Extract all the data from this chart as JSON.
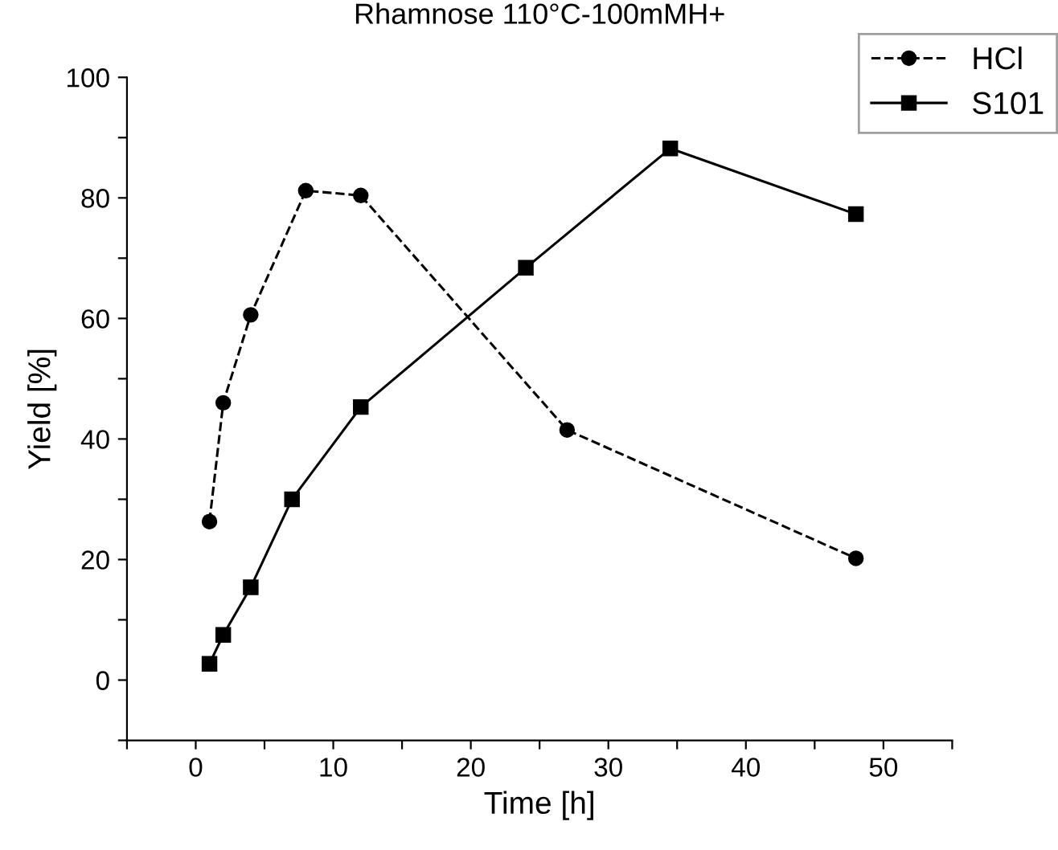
{
  "chart_data": {
    "type": "line",
    "title": "Rhamnose 110°C-100mMH+",
    "xlabel": "Time [h]",
    "ylabel": "Yield [%]",
    "xlim": [
      -5,
      55
    ],
    "ylim": [
      -10,
      100
    ],
    "xticks": [
      {
        "value": -5,
        "label": null
      },
      0,
      {
        "value": 5,
        "label": null
      },
      10,
      {
        "value": 15,
        "label": null
      },
      20,
      {
        "value": 25,
        "label": null
      },
      30,
      {
        "value": 35,
        "label": null
      },
      40,
      {
        "value": 45,
        "label": null
      },
      50,
      {
        "value": 55,
        "label": null
      }
    ],
    "yticks": [
      {
        "value": -10,
        "label": null
      },
      0,
      {
        "value": 10,
        "label": null
      },
      20,
      {
        "value": 30,
        "label": null
      },
      40,
      {
        "value": 50,
        "label": null
      },
      60,
      {
        "value": 70,
        "label": null
      },
      80,
      {
        "value": 90,
        "label": null
      },
      100
    ],
    "grid": false,
    "legend": "top right",
    "series": [
      {
        "name": "HCl",
        "color": "#000000",
        "marker": "circle",
        "line_style": "dashed",
        "x": [
          1,
          2,
          4,
          8,
          12,
          27,
          48
        ],
        "values": [
          26.3,
          46,
          60.6,
          81.2,
          80.4,
          41.5,
          20.2
        ]
      },
      {
        "name": "S101",
        "color": "#000000",
        "marker": "square",
        "line_style": "solid",
        "x": [
          1,
          2,
          4,
          7,
          12,
          24,
          34.5,
          48
        ],
        "values": [
          2.7,
          7.5,
          15.4,
          30,
          45.3,
          68.4,
          88.2,
          77.3
        ]
      }
    ]
  }
}
